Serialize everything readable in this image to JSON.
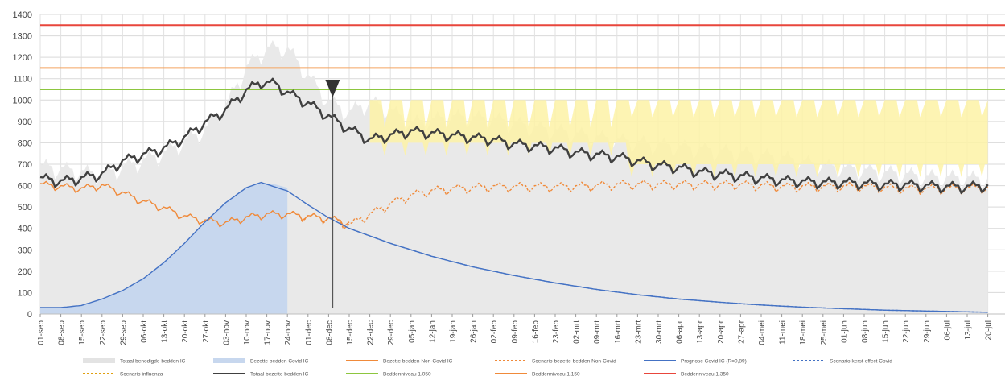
{
  "chart_data": {
    "type": "line",
    "ylim": [
      0,
      1400
    ],
    "yticks": [
      0,
      100,
      200,
      300,
      400,
      500,
      600,
      700,
      800,
      900,
      1000,
      1100,
      1200,
      1300,
      1400
    ],
    "grid": true,
    "legend_position": "bottom",
    "x_tick_labels": [
      "01-sep",
      "08-sep",
      "15-sep",
      "22-sep",
      "29-sep",
      "06-okt",
      "13-okt",
      "20-okt",
      "27-okt",
      "03-nov",
      "10-nov",
      "17-nov",
      "24-nov",
      "01-dec",
      "08-dec",
      "15-dec",
      "22-dec",
      "29-dec",
      "05-jan",
      "12-jan",
      "19-jan",
      "26-jan",
      "02-feb",
      "09-feb",
      "16-feb",
      "23-feb",
      "02-mrt",
      "09-mrt",
      "16-mrt",
      "23-mrt",
      "30-mrt",
      "06-apr",
      "13-apr",
      "20-apr",
      "27-apr",
      "04-mei",
      "11-mei",
      "18-mei",
      "25-mei",
      "01-jun",
      "08-jun",
      "15-jun",
      "22-jun",
      "29-jun",
      "06-jul",
      "13-jul",
      "20-jul"
    ],
    "x_start": "01-sep",
    "x_end": "20-jul",
    "x_unit": "days",
    "now_marker": "08-dec",
    "thresholds": [
      {
        "name": "Beddenniveau 1.050",
        "value": 1050,
        "color": "#8dc63f"
      },
      {
        "name": "Beddenniveau 1.150",
        "value": 1150,
        "color": "#f4a460"
      },
      {
        "name": "Beddenniveau 1.350",
        "value": 1350,
        "color": "#e8463c"
      }
    ],
    "series": [
      {
        "name": "Totaal benodigde bedden IC",
        "type": "area",
        "color": "#e9e9e9",
        "points": [
          [
            0,
            700
          ],
          [
            21,
            660
          ],
          [
            42,
            760
          ],
          [
            56,
            870
          ],
          [
            63,
            980
          ],
          [
            70,
            1160
          ],
          [
            77,
            1250
          ],
          [
            84,
            1250
          ],
          [
            91,
            1120
          ],
          [
            98,
            1000
          ],
          [
            105,
            950
          ],
          [
            112,
            1000
          ],
          [
            119,
            960
          ],
          [
            126,
            900
          ],
          [
            140,
            930
          ],
          [
            154,
            920
          ],
          [
            168,
            880
          ],
          [
            182,
            850
          ],
          [
            196,
            820
          ],
          [
            210,
            800
          ],
          [
            224,
            780
          ],
          [
            238,
            760
          ],
          [
            252,
            740
          ],
          [
            266,
            700
          ],
          [
            280,
            680
          ],
          [
            294,
            660
          ],
          [
            300,
            650
          ],
          [
            322,
            640
          ]
        ]
      },
      {
        "name": "Bezette bedden Covid IC",
        "type": "area",
        "color": "#c7d7ee",
        "points": [
          [
            0,
            30
          ],
          [
            7,
            30
          ],
          [
            14,
            40
          ],
          [
            21,
            70
          ],
          [
            28,
            110
          ],
          [
            35,
            165
          ],
          [
            42,
            240
          ],
          [
            49,
            330
          ],
          [
            56,
            430
          ],
          [
            63,
            520
          ],
          [
            70,
            590
          ],
          [
            75,
            615
          ],
          [
            80,
            605
          ],
          [
            84,
            590
          ]
        ]
      },
      {
        "name": "Bezette bedden Non-Covid IC",
        "type": "line",
        "color": "#f08a3a",
        "points": [
          [
            0,
            610
          ],
          [
            14,
            590
          ],
          [
            21,
            605
          ],
          [
            28,
            570
          ],
          [
            35,
            530
          ],
          [
            42,
            500
          ],
          [
            49,
            460
          ],
          [
            56,
            440
          ],
          [
            63,
            430
          ],
          [
            70,
            455
          ],
          [
            77,
            470
          ],
          [
            84,
            470
          ],
          [
            91,
            460
          ],
          [
            98,
            450
          ],
          [
            105,
            430
          ]
        ]
      },
      {
        "name": "Scenario bezette bedden Non-Covid",
        "type": "line",
        "dashed": true,
        "color": "#f08a3a",
        "points": [
          [
            84,
            470
          ],
          [
            98,
            450
          ],
          [
            105,
            420
          ],
          [
            112,
            470
          ],
          [
            119,
            520
          ],
          [
            126,
            560
          ],
          [
            133,
            580
          ],
          [
            140,
            590
          ],
          [
            154,
            600
          ],
          [
            168,
            600
          ],
          [
            182,
            600
          ],
          [
            196,
            610
          ],
          [
            210,
            610
          ],
          [
            224,
            610
          ],
          [
            238,
            610
          ],
          [
            252,
            600
          ],
          [
            266,
            600
          ],
          [
            280,
            600
          ],
          [
            294,
            590
          ],
          [
            308,
            590
          ],
          [
            322,
            595
          ]
        ]
      },
      {
        "name": "Prognose Covid IC (R=0,89)",
        "type": "line",
        "color": "#4472c4",
        "points": [
          [
            0,
            30
          ],
          [
            7,
            30
          ],
          [
            14,
            40
          ],
          [
            21,
            70
          ],
          [
            28,
            110
          ],
          [
            35,
            165
          ],
          [
            42,
            240
          ],
          [
            49,
            330
          ],
          [
            56,
            430
          ],
          [
            63,
            520
          ],
          [
            70,
            590
          ],
          [
            75,
            615
          ],
          [
            84,
            575
          ],
          [
            91,
            510
          ],
          [
            98,
            450
          ],
          [
            105,
            400
          ],
          [
            119,
            330
          ],
          [
            133,
            270
          ],
          [
            147,
            220
          ],
          [
            161,
            180
          ],
          [
            175,
            145
          ],
          [
            189,
            115
          ],
          [
            203,
            90
          ],
          [
            217,
            70
          ],
          [
            231,
            55
          ],
          [
            245,
            42
          ],
          [
            259,
            32
          ],
          [
            273,
            25
          ],
          [
            287,
            18
          ],
          [
            301,
            14
          ],
          [
            315,
            10
          ],
          [
            322,
            8
          ]
        ]
      },
      {
        "name": "Scenario kerst-effect Covid",
        "type": "line",
        "dashed": true,
        "color": "#4472c4",
        "points": [
          [
            105,
            400
          ],
          [
            119,
            330
          ],
          [
            133,
            270
          ],
          [
            147,
            220
          ],
          [
            161,
            180
          ],
          [
            175,
            145
          ],
          [
            189,
            115
          ],
          [
            203,
            90
          ],
          [
            217,
            70
          ],
          [
            231,
            55
          ],
          [
            245,
            42
          ],
          [
            259,
            32
          ],
          [
            273,
            25
          ],
          [
            287,
            18
          ],
          [
            301,
            14
          ],
          [
            315,
            10
          ],
          [
            322,
            8
          ]
        ]
      },
      {
        "name": "Scenario influenza",
        "type": "line",
        "dashed": true,
        "color": "#f0b400",
        "points": [
          [
            105,
            0
          ],
          [
            322,
            0
          ]
        ]
      },
      {
        "name": "Totaal bezette bedden IC",
        "type": "line",
        "color": "#404040",
        "points": [
          [
            0,
            640
          ],
          [
            7,
            625
          ],
          [
            14,
            640
          ],
          [
            21,
            660
          ],
          [
            28,
            720
          ],
          [
            35,
            750
          ],
          [
            42,
            780
          ],
          [
            49,
            830
          ],
          [
            56,
            900
          ],
          [
            63,
            960
          ],
          [
            70,
            1050
          ],
          [
            75,
            1090
          ],
          [
            80,
            1080
          ],
          [
            84,
            1040
          ],
          [
            91,
            990
          ],
          [
            98,
            930
          ],
          [
            105,
            870
          ],
          [
            112,
            820
          ],
          [
            119,
            840
          ],
          [
            126,
            860
          ],
          [
            133,
            850
          ],
          [
            140,
            840
          ],
          [
            147,
            830
          ],
          [
            154,
            820
          ],
          [
            161,
            800
          ],
          [
            168,
            790
          ],
          [
            175,
            780
          ],
          [
            182,
            760
          ],
          [
            189,
            750
          ],
          [
            196,
            740
          ],
          [
            203,
            720
          ],
          [
            210,
            700
          ],
          [
            217,
            690
          ],
          [
            224,
            670
          ],
          [
            231,
            660
          ],
          [
            238,
            650
          ],
          [
            245,
            640
          ],
          [
            252,
            630
          ],
          [
            259,
            625
          ],
          [
            266,
            620
          ],
          [
            273,
            620
          ],
          [
            280,
            615
          ],
          [
            287,
            610
          ],
          [
            294,
            610
          ],
          [
            301,
            605
          ],
          [
            308,
            600
          ],
          [
            315,
            600
          ],
          [
            322,
            605
          ]
        ]
      }
    ],
    "scenario_band": {
      "name": "yellow scenario range",
      "color": "#fdf2a6",
      "from": 112,
      "to": 322,
      "low": 700,
      "high": 1000
    },
    "legend": [
      {
        "label": "Totaal benodigde bedden IC",
        "style": "area",
        "color": "#e3e3e3"
      },
      {
        "label": "Bezette bedden Covid IC",
        "style": "area",
        "color": "#c7d7ee"
      },
      {
        "label": "Bezette bedden Non-Covid IC",
        "style": "line",
        "color": "#f08a3a"
      },
      {
        "label": "Scenario bezette bedden Non-Covid",
        "style": "dash",
        "color": "#f08a3a"
      },
      {
        "label": "Prognose Covid IC (R=0,89)",
        "style": "line",
        "color": "#4472c4"
      },
      {
        "label": "Scenario kerst-effect Covid",
        "style": "dash",
        "color": "#4472c4"
      },
      {
        "label": "Scenario influenza",
        "style": "dash",
        "color": "#e0a010"
      },
      {
        "label": "Totaal bezette bedden IC",
        "style": "line",
        "color": "#404040"
      },
      {
        "label": "Beddenniveau 1.050",
        "style": "line",
        "color": "#8dc63f"
      },
      {
        "label": "Beddenniveau 1.150",
        "style": "line",
        "color": "#f08a3a"
      },
      {
        "label": "Beddenniveau 1.350",
        "style": "line",
        "color": "#e8463c"
      }
    ]
  }
}
